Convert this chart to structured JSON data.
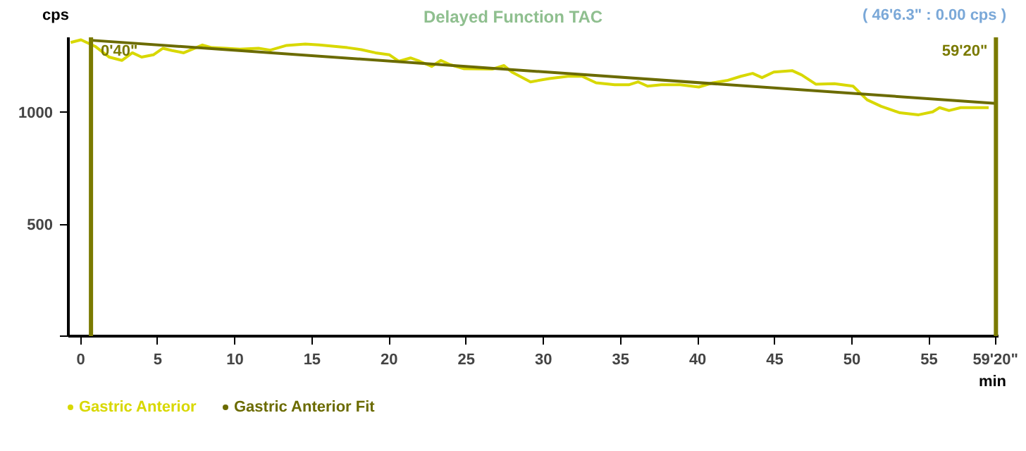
{
  "chart_data": {
    "type": "line",
    "title": "Delayed Function TAC",
    "xlabel": "min",
    "ylabel": "cps",
    "xlim": [
      -0.8,
      59.5
    ],
    "ylim": [
      0,
      1335
    ],
    "xticks": [
      0,
      5,
      10,
      15,
      20,
      25,
      30,
      35,
      40,
      45,
      50,
      55,
      {
        "value": 59.333,
        "label": "59'20\""
      }
    ],
    "yticks": [
      {
        "value": 0,
        "label": null
      },
      500,
      1000
    ],
    "grid": false,
    "legend": "bottom",
    "marker": "none",
    "line_style": "solid",
    "ref_lines": [
      {
        "axis": "x",
        "value": 0.667,
        "color": "#7a7a00"
      },
      {
        "axis": "x",
        "value": 59.333,
        "color": "#7a7a00"
      }
    ],
    "annotations": [
      "( 46'6.3\" : 0.00 cps )",
      {
        "text": "0'40\"",
        "x": 0.667,
        "y": 1335
      },
      {
        "text": "59'20\"",
        "x": 59.333,
        "y": 1335
      }
    ],
    "series": [
      {
        "name": "Gastric Anterior",
        "color": "#d8d800",
        "x": [
          -0.65,
          0.02,
          0.93,
          1.84,
          2.68,
          3.35,
          3.95,
          4.71,
          5.32,
          5.93,
          6.68,
          7.89,
          8.5,
          9.41,
          10.32,
          11.53,
          12.29,
          13.35,
          14.56,
          15.47,
          17.29,
          18.2,
          19.11,
          20.02,
          20.62,
          21.38,
          21.98,
          22.75,
          23.35,
          23.95,
          24.86,
          26.68,
          27.44,
          27.95,
          29.16,
          30.38,
          31.59,
          32.5,
          33.41,
          34.62,
          35.53,
          36.14,
          36.75,
          37.65,
          38.86,
          40.07,
          40.98,
          41.89,
          42.8,
          43.56,
          44.17,
          44.93,
          46.14,
          46.74,
          47.65,
          48.86,
          50.07,
          50.98,
          51.89,
          53.11,
          54.32,
          55.23,
          55.68,
          56.29,
          57.05,
          58.86
        ],
        "values": [
          1312,
          1324,
          1295,
          1247,
          1232,
          1266,
          1247,
          1257,
          1286,
          1276,
          1266,
          1301,
          1289,
          1286,
          1282,
          1286,
          1278,
          1299,
          1305,
          1301,
          1289,
          1280,
          1266,
          1257,
          1228,
          1243,
          1228,
          1205,
          1232,
          1213,
          1195,
          1193,
          1209,
          1180,
          1136,
          1151,
          1161,
          1161,
          1132,
          1123,
          1123,
          1136,
          1117,
          1123,
          1123,
          1113,
          1132,
          1142,
          1161,
          1174,
          1155,
          1180,
          1186,
          1167,
          1126,
          1128,
          1117,
          1056,
          1027,
          998,
          989,
          1002,
          1021,
          1008,
          1021,
          1021
        ]
      },
      {
        "name": "Gastric Anterior Fit",
        "color": "#6b6b00",
        "x": [
          0.667,
          59.333
        ],
        "values": [
          1322,
          1040
        ]
      }
    ]
  }
}
